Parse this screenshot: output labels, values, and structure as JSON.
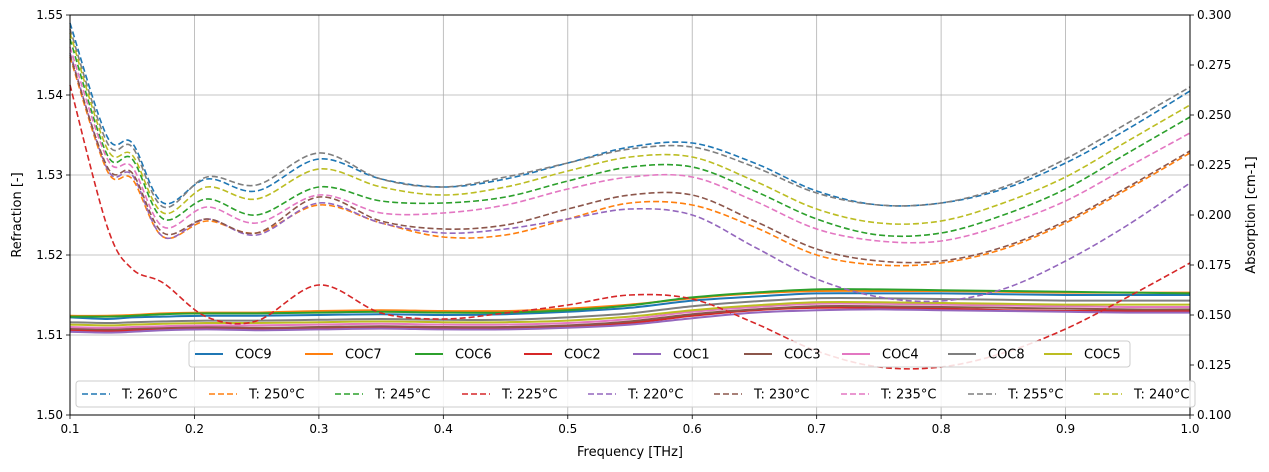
{
  "chart_data": {
    "type": "line",
    "xlabel": "Frequency [THz]",
    "ylabel_left": "Refraction [-]",
    "ylabel_right": "Absorption [cm-1]",
    "xlim": [
      0.1,
      1.0
    ],
    "ylim_left": [
      1.5,
      1.55
    ],
    "ylim_right": [
      0.1,
      0.3
    ],
    "x_ticks": [
      "0.1",
      "0.2",
      "0.3",
      "0.4",
      "0.5",
      "0.6",
      "0.7",
      "0.8",
      "0.9",
      "1.0"
    ],
    "y_ticks_left": [
      "1.50",
      "1.51",
      "1.52",
      "1.53",
      "1.54",
      "1.55"
    ],
    "y_ticks_right": [
      "0.100",
      "0.125",
      "0.150",
      "0.175",
      "0.200",
      "0.225",
      "0.250",
      "0.275",
      "0.300"
    ],
    "grid": true,
    "legend_refraction": {
      "placement": "lower-center",
      "entries": [
        "COC9",
        "COC7",
        "COC6",
        "COC2",
        "COC1",
        "COC3",
        "COC4",
        "COC8",
        "COC5"
      ]
    },
    "legend_absorption": {
      "placement": "bottom",
      "entries": [
        "T: 260°C",
        "T: 250°C",
        "T: 245°C",
        "T: 225°C",
        "T: 220°C",
        "T: 230°C",
        "T: 235°C",
        "T: 255°C",
        "T: 240°C"
      ]
    },
    "x": [
      0.1,
      0.13,
      0.15,
      0.175,
      0.21,
      0.25,
      0.3,
      0.35,
      0.4,
      0.45,
      0.5,
      0.55,
      0.6,
      0.65,
      0.7,
      0.75,
      0.8,
      0.85,
      0.9,
      0.95,
      1.0
    ],
    "refraction_series": [
      {
        "name": "COC9",
        "color": "#1f77b4",
        "values": [
          1.5122,
          1.512,
          1.5122,
          1.5123,
          1.5124,
          1.5124,
          1.5125,
          1.5126,
          1.5125,
          1.5126,
          1.5129,
          1.5134,
          1.5143,
          1.5148,
          1.5152,
          1.5152,
          1.5152,
          1.5151,
          1.515,
          1.515,
          1.515
        ]
      },
      {
        "name": "COC7",
        "color": "#ff7f0e",
        "values": [
          1.5124,
          1.5124,
          1.5125,
          1.5127,
          1.5128,
          1.5128,
          1.513,
          1.5131,
          1.513,
          1.513,
          1.5133,
          1.5138,
          1.5146,
          1.5152,
          1.5155,
          1.5155,
          1.5155,
          1.5154,
          1.5153,
          1.5153,
          1.5153
        ]
      },
      {
        "name": "COC6",
        "color": "#2ca02c",
        "values": [
          1.5123,
          1.5123,
          1.5124,
          1.5126,
          1.5127,
          1.5127,
          1.5128,
          1.5129,
          1.5128,
          1.5128,
          1.5131,
          1.5137,
          1.5147,
          1.5153,
          1.5157,
          1.5157,
          1.5156,
          1.5155,
          1.5154,
          1.5153,
          1.5152
        ]
      },
      {
        "name": "COC2",
        "color": "#d62728",
        "values": [
          1.5106,
          1.5105,
          1.5106,
          1.5107,
          1.5108,
          1.5107,
          1.5108,
          1.5109,
          1.5108,
          1.5108,
          1.511,
          1.5115,
          1.5124,
          1.5131,
          1.5134,
          1.5134,
          1.5133,
          1.5131,
          1.513,
          1.513,
          1.513
        ]
      },
      {
        "name": "COC1",
        "color": "#9467bd",
        "values": [
          1.5104,
          1.5103,
          1.5104,
          1.5106,
          1.5107,
          1.5106,
          1.5107,
          1.5108,
          1.5107,
          1.5107,
          1.5109,
          1.5113,
          1.5121,
          1.5128,
          1.5131,
          1.5132,
          1.5131,
          1.513,
          1.5129,
          1.5128,
          1.5128
        ]
      },
      {
        "name": "COC3",
        "color": "#8c564b",
        "values": [
          1.5108,
          1.5107,
          1.5108,
          1.5109,
          1.511,
          1.5109,
          1.511,
          1.5111,
          1.511,
          1.511,
          1.5112,
          1.5117,
          1.5126,
          1.5132,
          1.5136,
          1.5136,
          1.5135,
          1.5134,
          1.5133,
          1.5132,
          1.5132
        ]
      },
      {
        "name": "COC4",
        "color": "#e377c2",
        "values": [
          1.511,
          1.5109,
          1.511,
          1.5111,
          1.5112,
          1.5112,
          1.5113,
          1.5114,
          1.5113,
          1.5113,
          1.5115,
          1.512,
          1.5129,
          1.5135,
          1.5139,
          1.5139,
          1.5138,
          1.5137,
          1.5136,
          1.5135,
          1.5135
        ]
      },
      {
        "name": "COC8",
        "color": "#7f7f7f",
        "values": [
          1.5116,
          1.5115,
          1.5116,
          1.5117,
          1.5118,
          1.5118,
          1.5119,
          1.512,
          1.5119,
          1.5119,
          1.5122,
          1.5127,
          1.5136,
          1.5142,
          1.5146,
          1.5146,
          1.5145,
          1.5144,
          1.5143,
          1.5143,
          1.5143
        ]
      },
      {
        "name": "COC5",
        "color": "#bcbd22",
        "values": [
          1.5113,
          1.5112,
          1.5113,
          1.5114,
          1.5115,
          1.5115,
          1.5116,
          1.5117,
          1.5116,
          1.5116,
          1.5118,
          1.5123,
          1.5131,
          1.5137,
          1.5141,
          1.5141,
          1.514,
          1.5139,
          1.5138,
          1.5138,
          1.5138
        ]
      }
    ],
    "absorption_series": [
      {
        "name": "T: 260°C",
        "color": "#1f77b4",
        "values": [
          0.296,
          0.239,
          0.236,
          0.206,
          0.218,
          0.212,
          0.228,
          0.218,
          0.214,
          0.218,
          0.226,
          0.234,
          0.236,
          0.226,
          0.212,
          0.205,
          0.206,
          0.213,
          0.226,
          0.243,
          0.262
        ]
      },
      {
        "name": "T: 250°C",
        "color": "#ff7f0e",
        "values": [
          0.279,
          0.222,
          0.218,
          0.189,
          0.197,
          0.191,
          0.205,
          0.196,
          0.189,
          0.19,
          0.198,
          0.206,
          0.205,
          0.194,
          0.18,
          0.175,
          0.176,
          0.183,
          0.196,
          0.213,
          0.231
        ]
      },
      {
        "name": "T: 245°C",
        "color": "#2ca02c",
        "values": [
          0.288,
          0.23,
          0.228,
          0.198,
          0.208,
          0.2,
          0.214,
          0.207,
          0.206,
          0.209,
          0.217,
          0.224,
          0.224,
          0.212,
          0.198,
          0.19,
          0.191,
          0.2,
          0.213,
          0.231,
          0.249
        ]
      },
      {
        "name": "T: 225°C",
        "color": "#d62728",
        "values": [
          0.265,
          0.194,
          0.173,
          0.166,
          0.149,
          0.147,
          0.165,
          0.151,
          0.148,
          0.151,
          0.155,
          0.16,
          0.158,
          0.146,
          0.132,
          0.124,
          0.124,
          0.131,
          0.143,
          0.159,
          0.176
        ]
      },
      {
        "name": "T: 220°C",
        "color": "#9467bd",
        "values": [
          0.281,
          0.223,
          0.22,
          0.189,
          0.198,
          0.19,
          0.206,
          0.196,
          0.191,
          0.193,
          0.198,
          0.203,
          0.2,
          0.184,
          0.168,
          0.159,
          0.157,
          0.163,
          0.177,
          0.195,
          0.216
        ]
      },
      {
        "name": "T: 230°C",
        "color": "#8c564b",
        "values": [
          0.28,
          0.224,
          0.221,
          0.191,
          0.198,
          0.191,
          0.209,
          0.197,
          0.193,
          0.195,
          0.203,
          0.21,
          0.21,
          0.197,
          0.183,
          0.177,
          0.177,
          0.184,
          0.197,
          0.214,
          0.232
        ]
      },
      {
        "name": "T: 235°C",
        "color": "#e377c2",
        "values": [
          0.284,
          0.228,
          0.224,
          0.194,
          0.204,
          0.196,
          0.21,
          0.201,
          0.201,
          0.205,
          0.213,
          0.219,
          0.219,
          0.207,
          0.193,
          0.187,
          0.187,
          0.195,
          0.207,
          0.224,
          0.241
        ]
      },
      {
        "name": "T: 255°C",
        "color": "#7f7f7f",
        "values": [
          0.293,
          0.236,
          0.234,
          0.204,
          0.219,
          0.215,
          0.231,
          0.218,
          0.214,
          0.219,
          0.226,
          0.233,
          0.234,
          0.224,
          0.211,
          0.205,
          0.206,
          0.214,
          0.228,
          0.246,
          0.264
        ]
      },
      {
        "name": "T: 240°C",
        "color": "#bcbd22",
        "values": [
          0.291,
          0.233,
          0.23,
          0.201,
          0.214,
          0.208,
          0.223,
          0.214,
          0.21,
          0.214,
          0.222,
          0.229,
          0.229,
          0.217,
          0.203,
          0.196,
          0.197,
          0.206,
          0.219,
          0.237,
          0.255
        ]
      }
    ]
  }
}
